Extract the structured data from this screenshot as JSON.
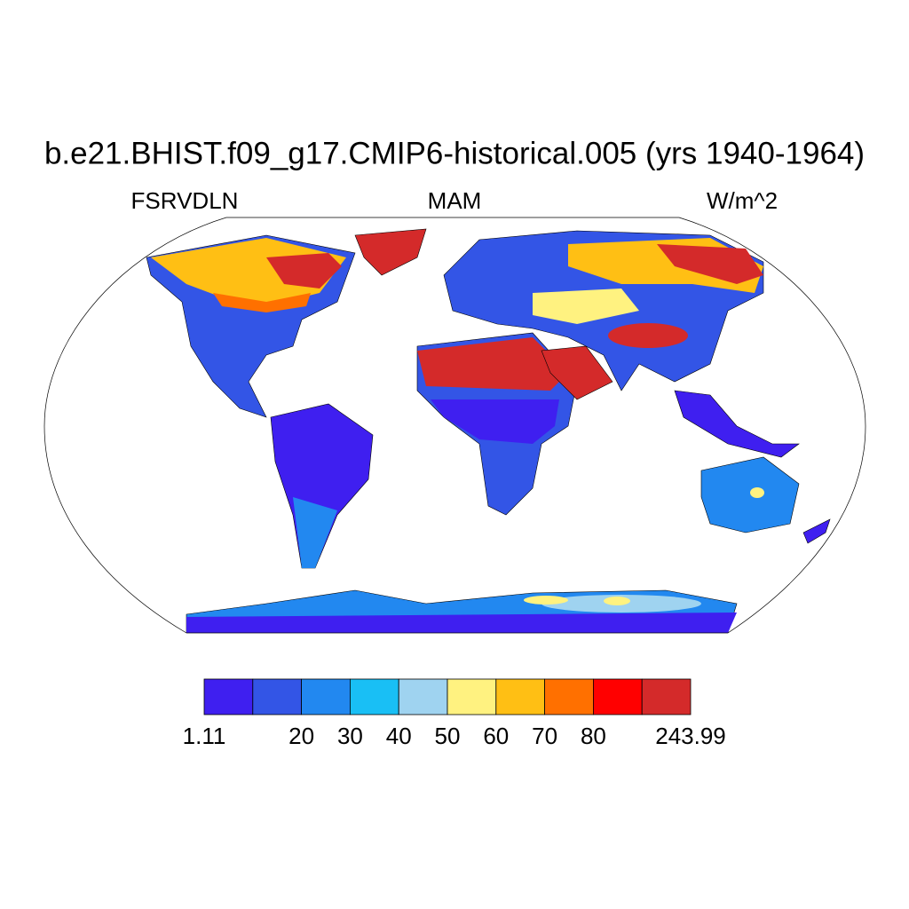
{
  "title": "b.e21.BHIST.f09_g17.CMIP6-historical.005 (yrs 1940-1964)",
  "left_label": "FSRVDLN",
  "center_label": "MAM",
  "right_label": "W/m^2",
  "colorbar": {
    "colors": [
      "#3f1ff0",
      "#3355e6",
      "#2288f0",
      "#19bff5",
      "#9fd3f0",
      "#fff280",
      "#ffbf14",
      "#ff7000",
      "#ff0000",
      "#d42a2a"
    ],
    "labels": [
      1.11,
      null,
      20,
      30,
      40,
      50,
      60,
      70,
      80,
      null,
      243.99
    ]
  }
}
